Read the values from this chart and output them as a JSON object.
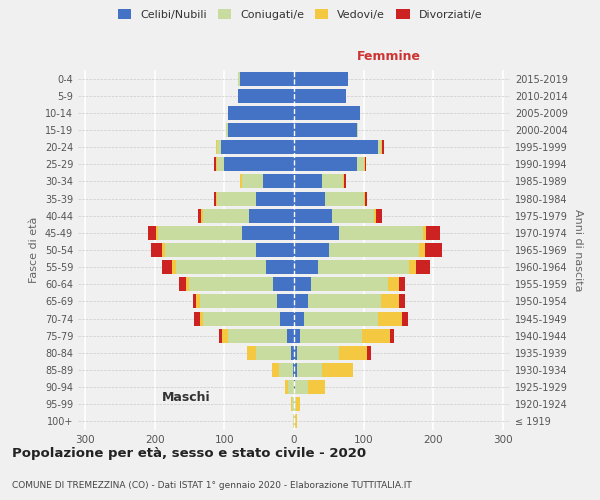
{
  "age_groups": [
    "100+",
    "95-99",
    "90-94",
    "85-89",
    "80-84",
    "75-79",
    "70-74",
    "65-69",
    "60-64",
    "55-59",
    "50-54",
    "45-49",
    "40-44",
    "35-39",
    "30-34",
    "25-29",
    "20-24",
    "15-19",
    "10-14",
    "5-9",
    "0-4"
  ],
  "birth_years": [
    "≤ 1919",
    "1920-1924",
    "1925-1929",
    "1930-1934",
    "1935-1939",
    "1940-1944",
    "1945-1949",
    "1950-1954",
    "1955-1959",
    "1960-1964",
    "1965-1969",
    "1970-1974",
    "1975-1979",
    "1980-1984",
    "1985-1989",
    "1990-1994",
    "1995-1999",
    "2000-2004",
    "2005-2009",
    "2010-2014",
    "2015-2019"
  ],
  "maschi": {
    "celibi": [
      0,
      0,
      0,
      2,
      5,
      10,
      20,
      25,
      30,
      40,
      55,
      75,
      65,
      55,
      45,
      100,
      105,
      95,
      95,
      80,
      78
    ],
    "coniugati": [
      2,
      3,
      8,
      20,
      50,
      85,
      110,
      110,
      120,
      130,
      130,
      120,
      65,
      55,
      30,
      10,
      5,
      2,
      0,
      0,
      2
    ],
    "vedovi": [
      0,
      2,
      5,
      10,
      12,
      8,
      5,
      5,
      5,
      5,
      5,
      3,
      3,
      2,
      2,
      2,
      2,
      0,
      0,
      0,
      0
    ],
    "divorziati": [
      0,
      0,
      0,
      0,
      0,
      5,
      8,
      5,
      10,
      15,
      15,
      12,
      5,
      3,
      0,
      3,
      0,
      0,
      0,
      0,
      0
    ]
  },
  "femmine": {
    "celibi": [
      0,
      0,
      2,
      5,
      5,
      8,
      15,
      20,
      25,
      35,
      50,
      65,
      55,
      45,
      40,
      90,
      120,
      90,
      95,
      75,
      78
    ],
    "coniugati": [
      2,
      3,
      18,
      35,
      60,
      90,
      105,
      105,
      110,
      130,
      130,
      120,
      60,
      55,
      30,
      10,
      5,
      2,
      0,
      0,
      0
    ],
    "vedovi": [
      2,
      5,
      25,
      45,
      40,
      40,
      35,
      25,
      15,
      10,
      8,
      5,
      3,
      2,
      2,
      2,
      2,
      0,
      0,
      0,
      0
    ],
    "divorziati": [
      0,
      0,
      0,
      0,
      5,
      5,
      8,
      10,
      10,
      20,
      25,
      20,
      8,
      3,
      2,
      2,
      2,
      0,
      0,
      0,
      0
    ]
  },
  "colors": {
    "celibi": "#4472c4",
    "coniugati": "#c8dca0",
    "vedovi": "#f5c842",
    "divorziati": "#cc2222"
  },
  "legend_labels": [
    "Celibi/Nubili",
    "Coniugati/e",
    "Vedovi/e",
    "Divorziati/e"
  ],
  "title": "Popolazione per età, sesso e stato civile - 2020",
  "subtitle": "COMUNE DI TREMEZZINA (CO) - Dati ISTAT 1° gennaio 2020 - Elaborazione TUTTITALIA.IT",
  "xlabel_left": "Maschi",
  "xlabel_right": "Femmine",
  "ylabel_left": "Fasce di età",
  "ylabel_right": "Anni di nascita",
  "xlim": 310,
  "background_color": "#f0f0f0"
}
